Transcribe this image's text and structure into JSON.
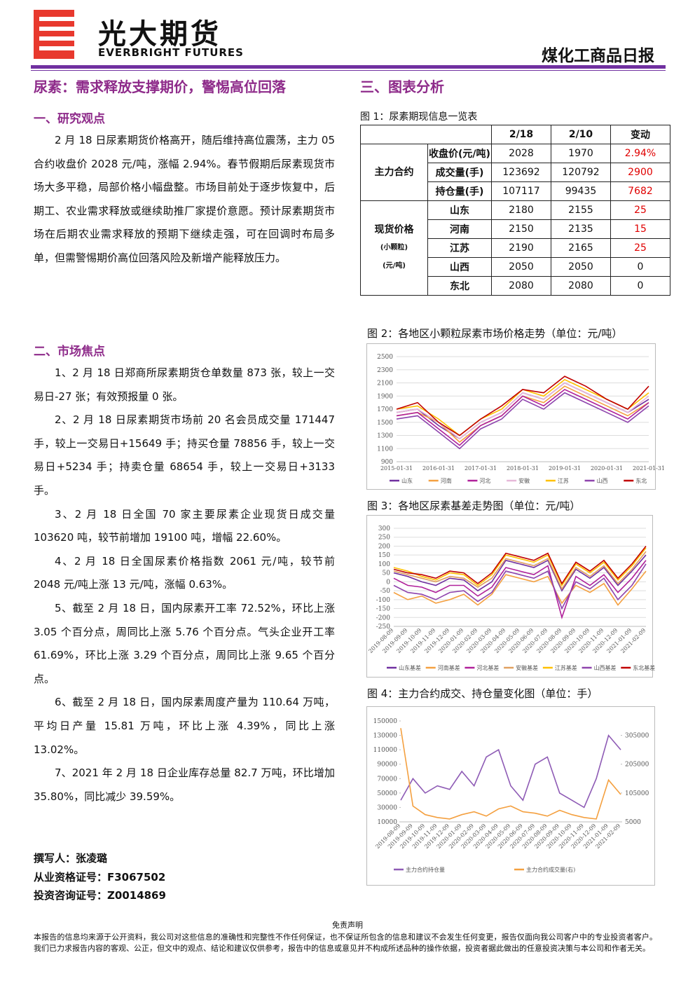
{
  "header": {
    "company_cn": "光大期货",
    "company_en": "EVERBRIGHT FUTURES",
    "report_name": "煤化工商品日报"
  },
  "report_title": "尿素：需求释放支撑期价，警惕高位回落",
  "charts_title": "三、图表分析",
  "research": {
    "heading": "一、研究观点",
    "text": "2 月 18 日尿素期货价格高开，随后维持高位震荡，主力 05 合约收盘价 2028 元/吨，涨幅 2.94%。春节假期后尿素现货市场大多平稳，局部价格小幅盘整。市场目前处于逐步恢复中，后期工、农业需求释放或继续助推厂家提价意愿。预计尿素期货市场在后期农业需求释放的预期下继续走强，可在回调时布局多单，但需警惕期价高位回落风险及新增产能释放压力。"
  },
  "focus": {
    "heading": "二、市场焦点",
    "items": [
      "1、2 月 18 日郑商所尿素期货仓单数量 873 张，较上一交易日-27 张；有效预报量 0 张。",
      "2、2 月 18 日尿素期货市场前 20 名会员成交量 171447 手，较上一交易日+15649 手；持买仓量 78856 手，较上一交易日+5234 手；持卖仓量 68654 手，较上一交易日+3133 手。",
      "3、2 月 18 日全国 70 家主要尿素企业现货日成交量 103620 吨，较节前增加 19100 吨，增幅 22.60%。",
      "4、2 月 18 日全国尿素价格指数 2061 元/吨，较节前 2048 元/吨上涨 13 元/吨，涨幅 0.63%。",
      "5、截至 2 月 18 日，国内尿素开工率 72.52%，环比上涨 3.05 个百分点，周同比上涨 5.76 个百分点。气头企业开工率 61.69%，环比上涨 3.29 个百分点，周同比上涨 9.65 个百分点。",
      "6、截至 2 月 18 日，国内尿素周度产量为 110.64 万吨，平均日产量 15.81 万吨，环比上涨 4.39%，同比上涨 13.02%。",
      "7、2021 年 2 月 18 日企业库存总量 82.7 万吨，环比增加 35.80%，同比减少 39.59%。"
    ]
  },
  "author": [
    "撰写人：张凌璐",
    "从业资格证号：F3067502",
    "投资咨询证号：Z0014869"
  ],
  "table": {
    "caption": "图 1：尿素期现信息一览表",
    "header": [
      "2/18",
      "2/10",
      "变动"
    ],
    "groups": [
      {
        "label": [
          "主力合约"
        ],
        "rows": [
          [
            "收盘价(元/吨)",
            "2028",
            "1970",
            "2.94%"
          ],
          [
            "成交量(手)",
            "123692",
            "120792",
            "2900"
          ],
          [
            "持仓量(手)",
            "107117",
            "99435",
            "7682"
          ]
        ]
      },
      {
        "label": [
          "现货价格",
          "(小颗粒)",
          "(元/吨)"
        ],
        "rows": [
          [
            "山东",
            "2180",
            "2155",
            "25"
          ],
          [
            "河南",
            "2150",
            "2135",
            "15"
          ],
          [
            "江苏",
            "2190",
            "2165",
            "25"
          ],
          [
            "山西",
            "2050",
            "2050",
            "0"
          ],
          [
            "东北",
            "2080",
            "2080",
            "0"
          ]
        ]
      }
    ]
  },
  "figures": [
    {
      "caption": "图 2：各地区小颗粒尿素市场价格走势（单位：元/吨）",
      "chart_data": {
        "type": "line",
        "categories": [
          "2015-01-31",
          null,
          "2016-01-31",
          null,
          "2017-01-31",
          null,
          "2018-01-31",
          null,
          "2019-01-31",
          null,
          "2020-01-31",
          null,
          "2021-01-31"
        ],
        "ylim": [
          900,
          2500
        ],
        "yticks": [
          900,
          1100,
          1300,
          1500,
          1700,
          1900,
          2100,
          2300,
          2500
        ],
        "grid": true,
        "series": [
          {
            "name": "山东",
            "color": "#7030a0",
            "values": [
              1650,
              1700,
              1450,
              1250,
              1500,
              1650,
              1950,
              1850,
              2100,
              1950,
              1800,
              1650,
              1850
            ]
          },
          {
            "name": "河南",
            "color": "#f4a040",
            "values": [
              1600,
              1650,
              1500,
              1200,
              1450,
              1600,
              1900,
              1800,
              2050,
              1900,
              1750,
              1600,
              1800
            ]
          },
          {
            "name": "河北",
            "color": "#b0209a",
            "values": [
              1600,
              1650,
              1400,
              1150,
              1450,
              1600,
              1900,
              1750,
              2000,
              1850,
              1700,
              1550,
              1800
            ]
          },
          {
            "name": "安徽",
            "color": "#e6b8d8",
            "values": [
              1650,
              1700,
              1500,
              1250,
              1500,
              1650,
              1950,
              1850,
              2100,
              1950,
              1800,
              1650,
              1900
            ]
          },
          {
            "name": "江苏",
            "color": "#ffc000",
            "values": [
              1700,
              1750,
              1550,
              1300,
              1550,
              1700,
              2000,
              1900,
              2150,
              2000,
              1850,
              1700,
              1950
            ]
          },
          {
            "name": "山西",
            "color": "#8e44ad",
            "values": [
              1550,
              1600,
              1350,
              1100,
              1400,
              1550,
              1850,
              1700,
              1950,
              1800,
              1650,
              1500,
              1750
            ]
          },
          {
            "name": "东北",
            "color": "#c00000",
            "values": [
              1700,
              1800,
              1500,
              1300,
              1550,
              1750,
              2000,
              1950,
              2200,
              2050,
              1850,
              1700,
              2050
            ]
          }
        ]
      }
    },
    {
      "caption": "图 3：各地区尿素基差走势图（单位：元/吨）",
      "chart_data": {
        "type": "line",
        "categories": [
          "2019-08-09",
          "2019-09-09",
          "2019-10-09",
          "2019-11-09",
          "2019-12-09",
          "2020-01-09",
          "2020-02-09",
          "2020-03-09",
          "2020-04-09",
          "2020-05-09",
          "2020-06-09",
          "2020-07-09",
          "2020-08-09",
          "2020-09-09",
          "2020-10-09",
          "2020-11-09",
          "2020-12-09",
          "2021-01-09",
          "2021-02-09"
        ],
        "ylim": [
          -250,
          300
        ],
        "yticks": [
          -250,
          -200,
          -150,
          -100,
          -50,
          0,
          50,
          100,
          150,
          200,
          250,
          300
        ],
        "grid": true,
        "series": [
          {
            "name": "山东基差",
            "color": "#7030a0",
            "values": [
              50,
              30,
              0,
              -20,
              20,
              10,
              -50,
              0,
              120,
              100,
              80,
              120,
              -50,
              70,
              20,
              80,
              -20,
              60,
              150
            ]
          },
          {
            "name": "河南基差",
            "color": "#f4a040",
            "values": [
              -60,
              -100,
              -80,
              -120,
              -100,
              -70,
              -130,
              -70,
              40,
              20,
              0,
              30,
              -120,
              -20,
              -60,
              -10,
              -130,
              -40,
              60
            ]
          },
          {
            "name": "河北基差",
            "color": "#b0209a",
            "values": [
              20,
              -20,
              -30,
              -60,
              -20,
              -20,
              -80,
              -30,
              80,
              60,
              40,
              90,
              -200,
              30,
              -20,
              40,
              -60,
              20,
              120
            ]
          },
          {
            "name": "安徽基差",
            "color": "#e0a060",
            "values": [
              60,
              40,
              20,
              0,
              30,
              20,
              -30,
              20,
              130,
              110,
              90,
              130,
              -40,
              80,
              30,
              90,
              -10,
              70,
              170
            ]
          },
          {
            "name": "江苏基差",
            "color": "#ffc000",
            "values": [
              80,
              60,
              30,
              10,
              50,
              40,
              -20,
              40,
              150,
              130,
              110,
              150,
              -20,
              100,
              50,
              110,
              10,
              90,
              190
            ]
          },
          {
            "name": "山西基差",
            "color": "#8e44ad",
            "values": [
              -20,
              -60,
              -70,
              -100,
              -60,
              -50,
              -110,
              -60,
              60,
              40,
              20,
              60,
              -150,
              0,
              -40,
              20,
              -100,
              -20,
              100
            ]
          },
          {
            "name": "东北基差",
            "color": "#c00000",
            "values": [
              70,
              50,
              40,
              20,
              60,
              50,
              -10,
              50,
              160,
              140,
              120,
              160,
              -10,
              110,
              60,
              120,
              20,
              100,
              200
            ]
          }
        ]
      }
    },
    {
      "caption": "图 4：主力合约成交、持仓量变化图（单位：手）",
      "chart_data": {
        "type": "line",
        "categories": [
          "2019-08-09",
          "2019-09-09",
          "2019-10-09",
          "2019-11-09",
          "2019-12-09",
          "2020-01-09",
          "2020-02-09",
          "2020-03-09",
          "2020-04-09",
          "2020-05-09",
          "2020-06-09",
          "2020-07-09",
          "2020-08-09",
          "2020-09-09",
          "2020-10-09",
          "2020-11-09",
          "2020-12-09",
          "2021-01-09",
          "2021-02-09"
        ],
        "ylim": [
          10000,
          150000
        ],
        "yticks": [
          10000,
          30000,
          50000,
          70000,
          90000,
          110000,
          130000,
          150000
        ],
        "y2lim": [
          5000,
          355000
        ],
        "y2ticks": [
          5000,
          105000,
          205000,
          305000
        ],
        "grid": false,
        "series": [
          {
            "name": "主力合约持仓量",
            "color": "#8e5bb5",
            "values": [
              40000,
              70000,
              50000,
              60000,
              55000,
              80000,
              60000,
              100000,
              110000,
              60000,
              40000,
              90000,
              100000,
              50000,
              40000,
              30000,
              70000,
              130000,
              110000
            ]
          },
          {
            "name": "主力合约成交量(右)",
            "color": "#f4a040",
            "axis": "y2",
            "values": [
              330000,
              60000,
              30000,
              20000,
              15000,
              30000,
              40000,
              25000,
              50000,
              60000,
              40000,
              35000,
              25000,
              45000,
              30000,
              20000,
              15000,
              150000,
              100000
            ]
          }
        ]
      }
    }
  ],
  "disclaimer": {
    "title": "免责声明",
    "text": "本报告的信息均来源于公开资料，我公司对这些信息的准确性和完整性不作任何保证，也不保证所包含的信息和建议不会发生任何变更，报告仅面向我公司客户中的专业投资者客户。我们已力求报告内容的客观、公正，但文中的观点、结论和建议仅供参考，报告中的信息或意见并不构成所述品种的操作依据，投资者据此做出的任意投资决策与本公司和作者无关。"
  }
}
